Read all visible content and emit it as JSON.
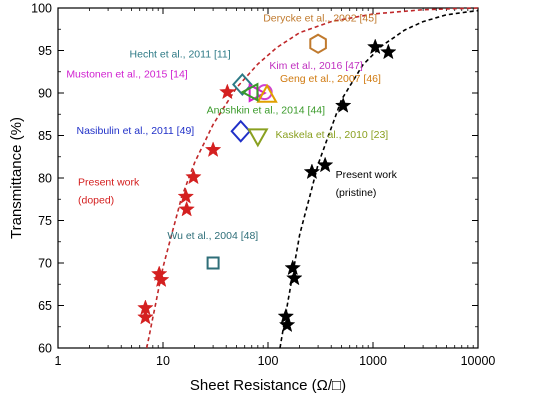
{
  "chart_data": {
    "type": "scatter",
    "title": "",
    "xlabel": "Sheet Resistance (Ω/□)",
    "ylabel": "Transmittance (%)",
    "x_scale": "log",
    "xlim": [
      1,
      10000
    ],
    "ylim": [
      60,
      100
    ],
    "x_ticks": [
      "1",
      "10",
      "100",
      "1000",
      "10000"
    ],
    "y_ticks": [
      "60",
      "65",
      "70",
      "75",
      "80",
      "85",
      "90",
      "95",
      "100"
    ],
    "grid": false,
    "legend": "none",
    "series": [
      {
        "name": "Present work (doped)",
        "color": "#d42020",
        "marker": "star-filled",
        "points": [
          {
            "x": 6.8,
            "y": 64.7
          },
          {
            "x": 6.8,
            "y": 63.6
          },
          {
            "x": 9.2,
            "y": 68.7
          },
          {
            "x": 9.6,
            "y": 68.0
          },
          {
            "x": 16.5,
            "y": 77.8
          },
          {
            "x": 16.8,
            "y": 76.3
          },
          {
            "x": 19.5,
            "y": 80.1
          },
          {
            "x": 30,
            "y": 83.3
          },
          {
            "x": 41,
            "y": 90.1
          }
        ]
      },
      {
        "name": "Present work (pristine)",
        "color": "#000000",
        "marker": "star-filled",
        "points": [
          {
            "x": 148,
            "y": 63.7
          },
          {
            "x": 152,
            "y": 62.7
          },
          {
            "x": 172,
            "y": 69.4
          },
          {
            "x": 178,
            "y": 68.2
          },
          {
            "x": 262,
            "y": 80.7
          },
          {
            "x": 350,
            "y": 81.5
          },
          {
            "x": 520,
            "y": 88.5
          },
          {
            "x": 1050,
            "y": 95.4
          },
          {
            "x": 1400,
            "y": 94.8
          }
        ]
      }
    ],
    "fits": [
      {
        "name": "doped fit",
        "color": "#c0282a",
        "x": [
          7,
          10,
          15,
          20,
          30,
          50,
          80,
          120,
          200,
          400,
          1000,
          3000,
          10000
        ],
        "y": [
          60,
          69.5,
          77.7,
          81.8,
          86.3,
          90.6,
          93.4,
          95.3,
          97.1,
          98.4,
          99.3,
          99.8,
          100
        ]
      },
      {
        "name": "pristine fit",
        "color": "#000000",
        "x": [
          130,
          150,
          200,
          300,
          500,
          800,
          1200,
          2000,
          3000,
          5000,
          10000
        ],
        "y": [
          60,
          64.5,
          73.3,
          81.6,
          89.2,
          93.3,
          95.5,
          97.4,
          98.4,
          99.2,
          99.7
        ]
      }
    ],
    "references": [
      {
        "label": "Derycke et al., 2002 [45]",
        "color": "#c07a2e",
        "marker": "hexagon",
        "x": 300,
        "y": 95.8
      },
      {
        "label": "Hecht et al., 2011 [11]",
        "color": "#2e7a86",
        "marker": "diamond",
        "x": 57,
        "y": 91.0
      },
      {
        "label": "Kim et al., 2016 [47]",
        "color": "#d040d0",
        "marker": "circle",
        "x": 93,
        "y": 90.1
      },
      {
        "label": "Mustonen et al., 2015 [14]",
        "color": "#d020d0",
        "marker": "triangle-right",
        "x": 78,
        "y": 90.0
      },
      {
        "label": "Geng et al., 2007 [46]",
        "color": "#e0a000",
        "marker": "triangle-up",
        "x": 98,
        "y": 89.8
      },
      {
        "label": "Anoshkin et al., 2014 [44]",
        "color": "#3a9a2a",
        "marker": "triangle-left",
        "x": 68,
        "y": 90.1
      },
      {
        "label": "Nasibulin et al., 2011 [49]",
        "color": "#2030c8",
        "marker": "diamond",
        "x": 55,
        "y": 85.5
      },
      {
        "label": "Kaskela et al., 2010 [23]",
        "color": "#8aa020",
        "marker": "triangle-down",
        "x": 80,
        "y": 84.9
      },
      {
        "label": "Wu et al., 2004 [48]",
        "color": "#2e6e78",
        "marker": "square",
        "x": 30,
        "y": 70.0
      }
    ],
    "annotations": [
      {
        "text": "Derycke et al., 2002 [45]",
        "color": "#c07a2e",
        "anchor_x": 90,
        "anchor_y": 98.4
      },
      {
        "text": "Hecht et al., 2011 [11]",
        "color": "#2e7a86",
        "anchor_x": 4.8,
        "anchor_y": 94.2
      },
      {
        "text": "Kim et al., 2016 [47]",
        "color": "#c030c0",
        "anchor_x": 103,
        "anchor_y": 92.8
      },
      {
        "text": "Mustonen et al., 2015 [14]",
        "color": "#d020d0",
        "anchor_x": 1.2,
        "anchor_y": 91.8
      },
      {
        "text": "Geng et al., 2007 [46]",
        "color": "#d07a10",
        "anchor_x": 130,
        "anchor_y": 91.3
      },
      {
        "text": "Anoshkin et al., 2014 [44]",
        "color": "#3a9a2a",
        "anchor_x": 26,
        "anchor_y": 87.6
      },
      {
        "text": "Nasibulin et al., 2011 [49]",
        "color": "#2030c8",
        "anchor_x": 1.5,
        "anchor_y": 85.2
      },
      {
        "text": "Kaskela et al., 2010 [23]",
        "color": "#8aa020",
        "anchor_x": 118,
        "anchor_y": 84.7
      },
      {
        "text": "Present work",
        "color": "#d42020",
        "anchor_x": 1.55,
        "anchor_y": 79.1
      },
      {
        "text": "(doped)",
        "color": "#d42020",
        "anchor_x": 1.55,
        "anchor_y": 77.0
      },
      {
        "text": "Wu et al., 2004 [48]",
        "color": "#2e6e78",
        "anchor_x": 11,
        "anchor_y": 72.8
      },
      {
        "text": "Present work",
        "color": "#000000",
        "anchor_x": 440,
        "anchor_y": 80.0
      },
      {
        "text": "(pristine)",
        "color": "#000000",
        "anchor_x": 440,
        "anchor_y": 77.9
      }
    ]
  }
}
